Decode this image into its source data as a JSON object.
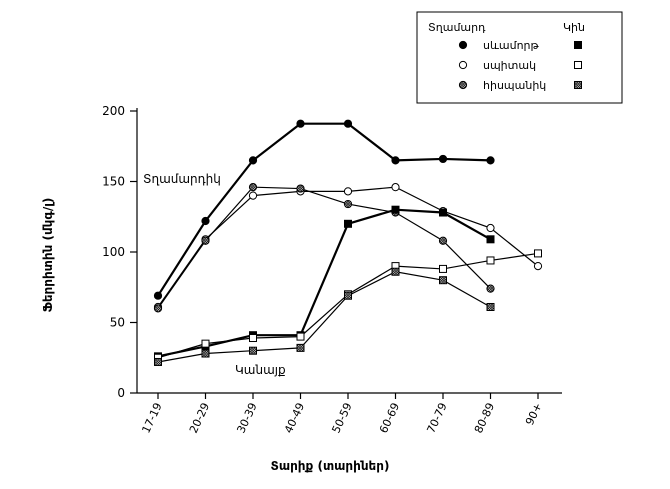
{
  "chart_data": {
    "type": "line",
    "xlabel": "Տարիք (տարիներ)",
    "ylabel": "Ֆերրիտին (մկգ/լ)",
    "categories": [
      "17-19",
      "20-29",
      "30-39",
      "40-49",
      "50-59",
      "60-69",
      "70-79",
      "80-89",
      "90+"
    ],
    "ylim": [
      0,
      200
    ],
    "yticks": [
      0,
      50,
      100,
      150,
      200
    ],
    "grid": false,
    "legend_position": "top-right",
    "legend": {
      "men_header": "Տղամարդ",
      "women_header": "Կին",
      "rows": [
        {
          "label": "սևամորթ",
          "men_marker": "filled-circle",
          "women_marker": "filled-square"
        },
        {
          "label": "սպիտակ",
          "men_marker": "open-circle",
          "women_marker": "open-square"
        },
        {
          "label": "հիսպանիկ",
          "men_marker": "hatched-circle",
          "women_marker": "hatched-square"
        }
      ]
    },
    "annotations": [
      {
        "text": "Տղամարդիկ",
        "near": "men-series"
      },
      {
        "text": "Կանայք",
        "near": "women-series"
      }
    ],
    "series": [
      {
        "group": "men",
        "race": "black",
        "marker": "filled-circle",
        "values": [
          69,
          122,
          165,
          191,
          191,
          165,
          166,
          165,
          null
        ]
      },
      {
        "group": "men",
        "race": "white",
        "marker": "open-circle",
        "values": [
          61,
          109,
          140,
          143,
          143,
          146,
          129,
          117,
          90
        ]
      },
      {
        "group": "men",
        "race": "hispanic",
        "marker": "hatched-circle",
        "values": [
          60,
          108,
          146,
          145,
          134,
          128,
          108,
          74,
          null
        ]
      },
      {
        "group": "women",
        "race": "black",
        "marker": "filled-square",
        "values": [
          26,
          33,
          41,
          41,
          120,
          130,
          128,
          109,
          null
        ]
      },
      {
        "group": "women",
        "race": "white",
        "marker": "open-square",
        "values": [
          25,
          35,
          39,
          40,
          70,
          90,
          88,
          94,
          99
        ]
      },
      {
        "group": "women",
        "race": "hispanic",
        "marker": "hatched-square",
        "values": [
          22,
          28,
          30,
          32,
          69,
          86,
          80,
          61,
          null
        ]
      }
    ]
  }
}
